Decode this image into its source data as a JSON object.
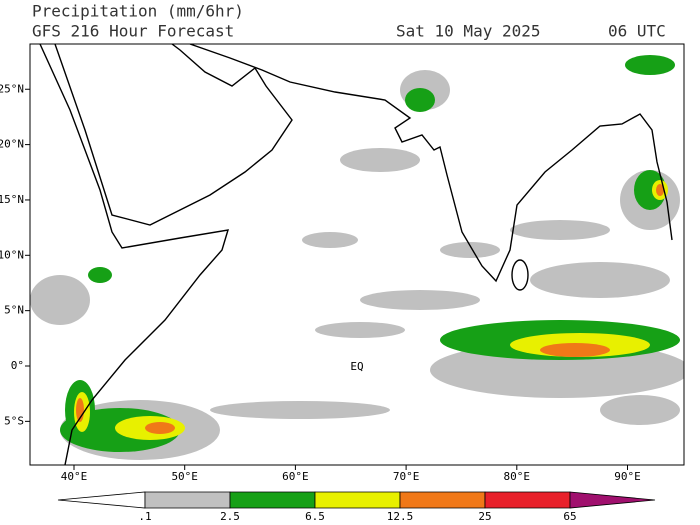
{
  "header": {
    "title": "Precipitation (mm/6hr)",
    "forecast": "GFS 216 Hour Forecast",
    "date": "Sat 10 May 2025",
    "time": "06 UTC"
  },
  "map": {
    "lon_ticks": [
      {
        "value": 40,
        "label": "40°E"
      },
      {
        "value": 50,
        "label": "50°E"
      },
      {
        "value": 60,
        "label": "60°E"
      },
      {
        "value": 70,
        "label": "70°E"
      },
      {
        "value": 80,
        "label": "80°E"
      },
      {
        "value": 90,
        "label": "90°E"
      }
    ],
    "lat_ticks": [
      {
        "value": 25,
        "label": "25°N"
      },
      {
        "value": 20,
        "label": "20°N"
      },
      {
        "value": 15,
        "label": "15°N"
      },
      {
        "value": 10,
        "label": "10°N"
      },
      {
        "value": 5,
        "label": "5°N"
      },
      {
        "value": 0,
        "label": "0°"
      },
      {
        "value": -5,
        "label": "5°S"
      }
    ],
    "annotation": "EQ"
  },
  "colorbar": {
    "labels": [
      ".1",
      "2.5",
      "6.5",
      "12.5",
      "25",
      "65"
    ],
    "colors": [
      "#ffffff",
      "#c0c0c0",
      "#16a016",
      "#e8f000",
      "#f07818",
      "#e8202a",
      "#a0106e"
    ]
  }
}
